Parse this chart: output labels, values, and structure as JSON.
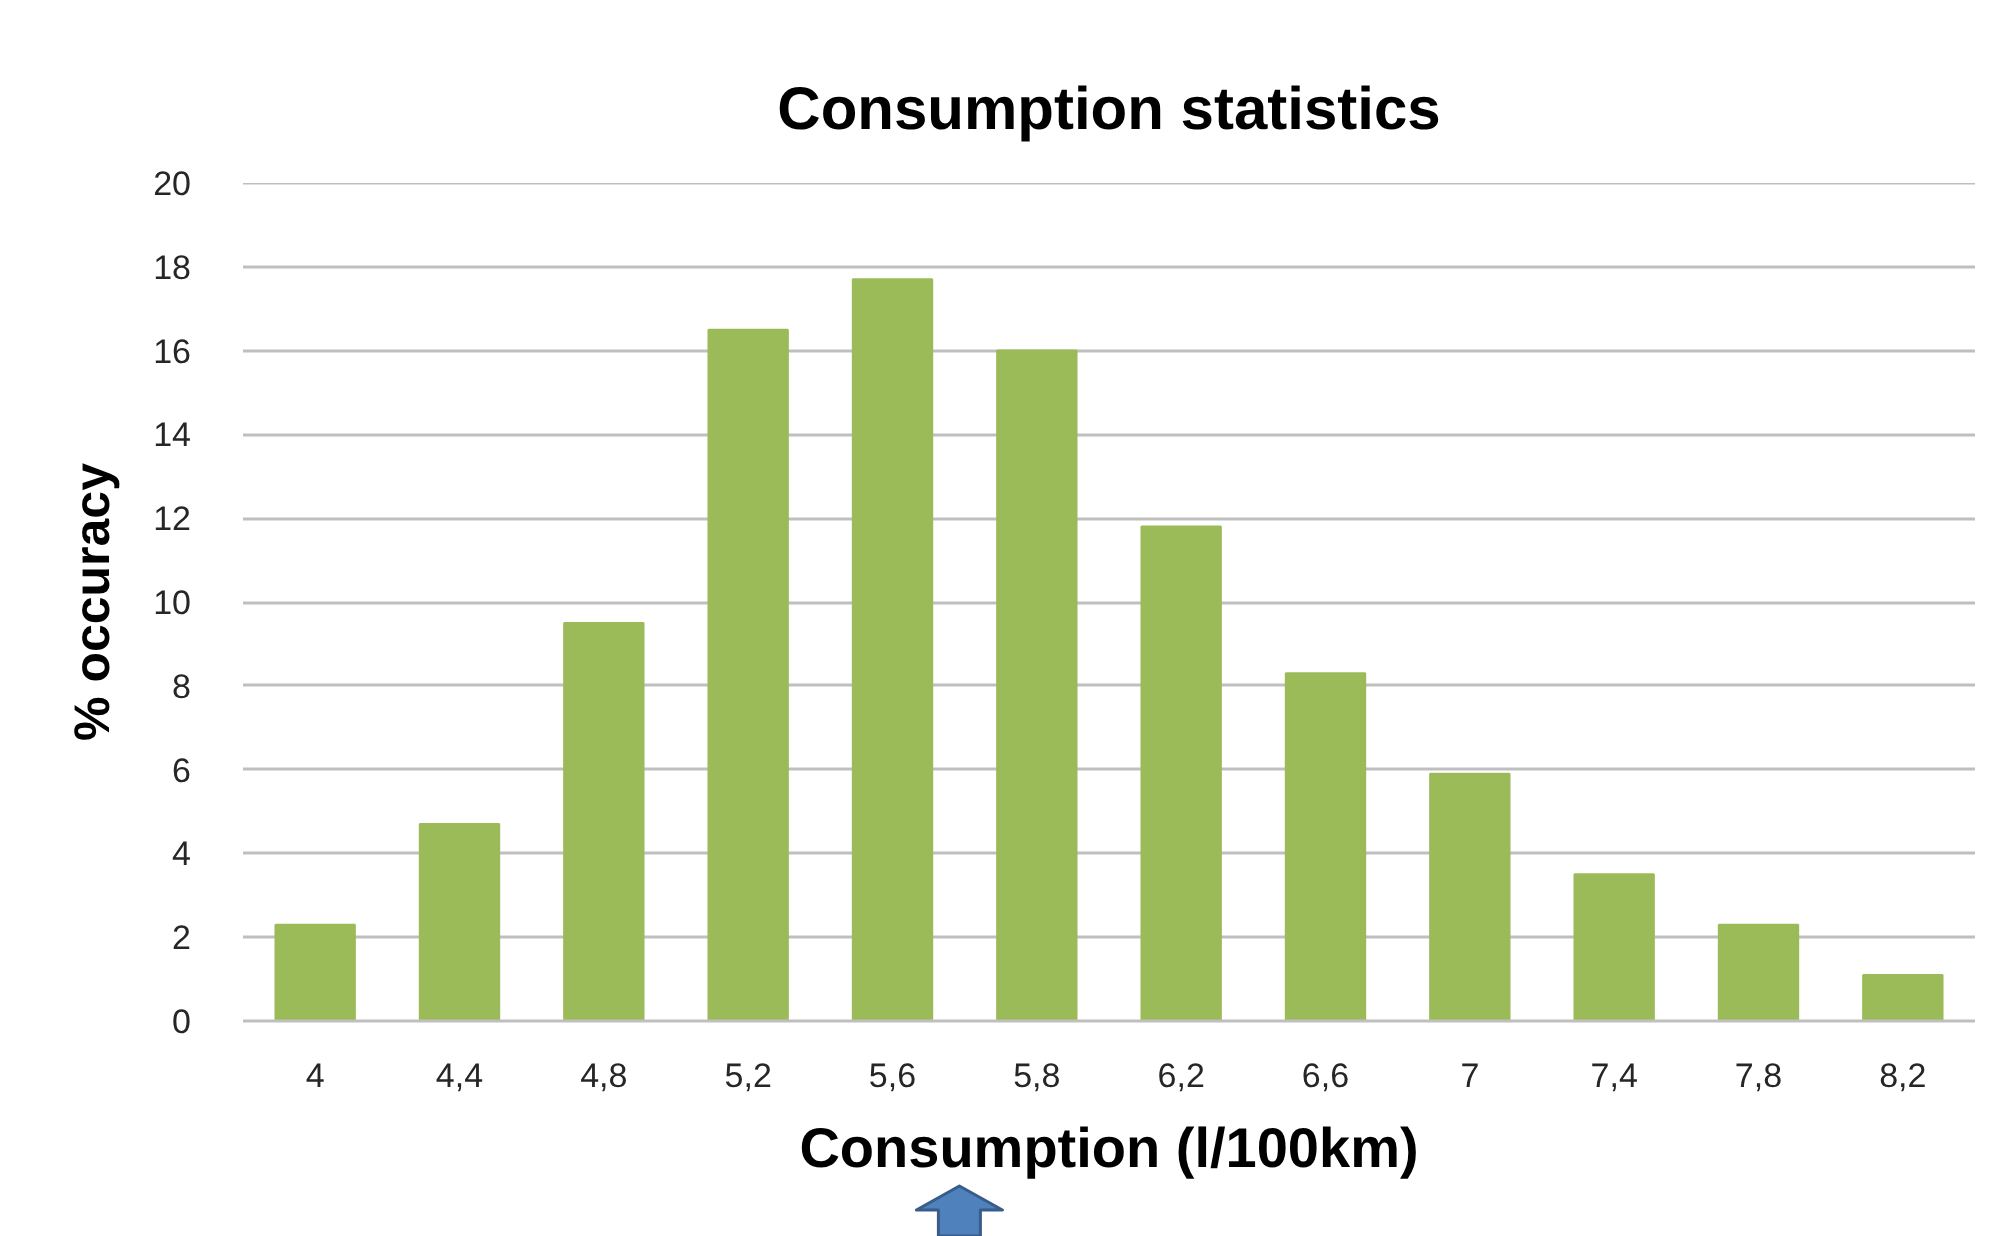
{
  "chart_data": {
    "type": "bar",
    "title": "Consumption statistics",
    "xlabel": "Consumption (l/100km)",
    "ylabel": "% occuracy",
    "categories": [
      "4",
      "4,4",
      "4,8",
      "5,2",
      "5,6",
      "5,8",
      "6,2",
      "6,6",
      "7",
      "7,4",
      "7,8",
      "8,2"
    ],
    "values": [
      2.3,
      4.7,
      9.5,
      16.5,
      17.7,
      16.0,
      11.8,
      8.3,
      5.9,
      3.5,
      2.3,
      1.1
    ],
    "color": "#9bbb59",
    "ylim": [
      0,
      20
    ],
    "yticks": [
      0,
      2,
      4,
      6,
      8,
      10,
      12,
      14,
      16,
      18,
      20
    ],
    "grid": "y"
  }
}
